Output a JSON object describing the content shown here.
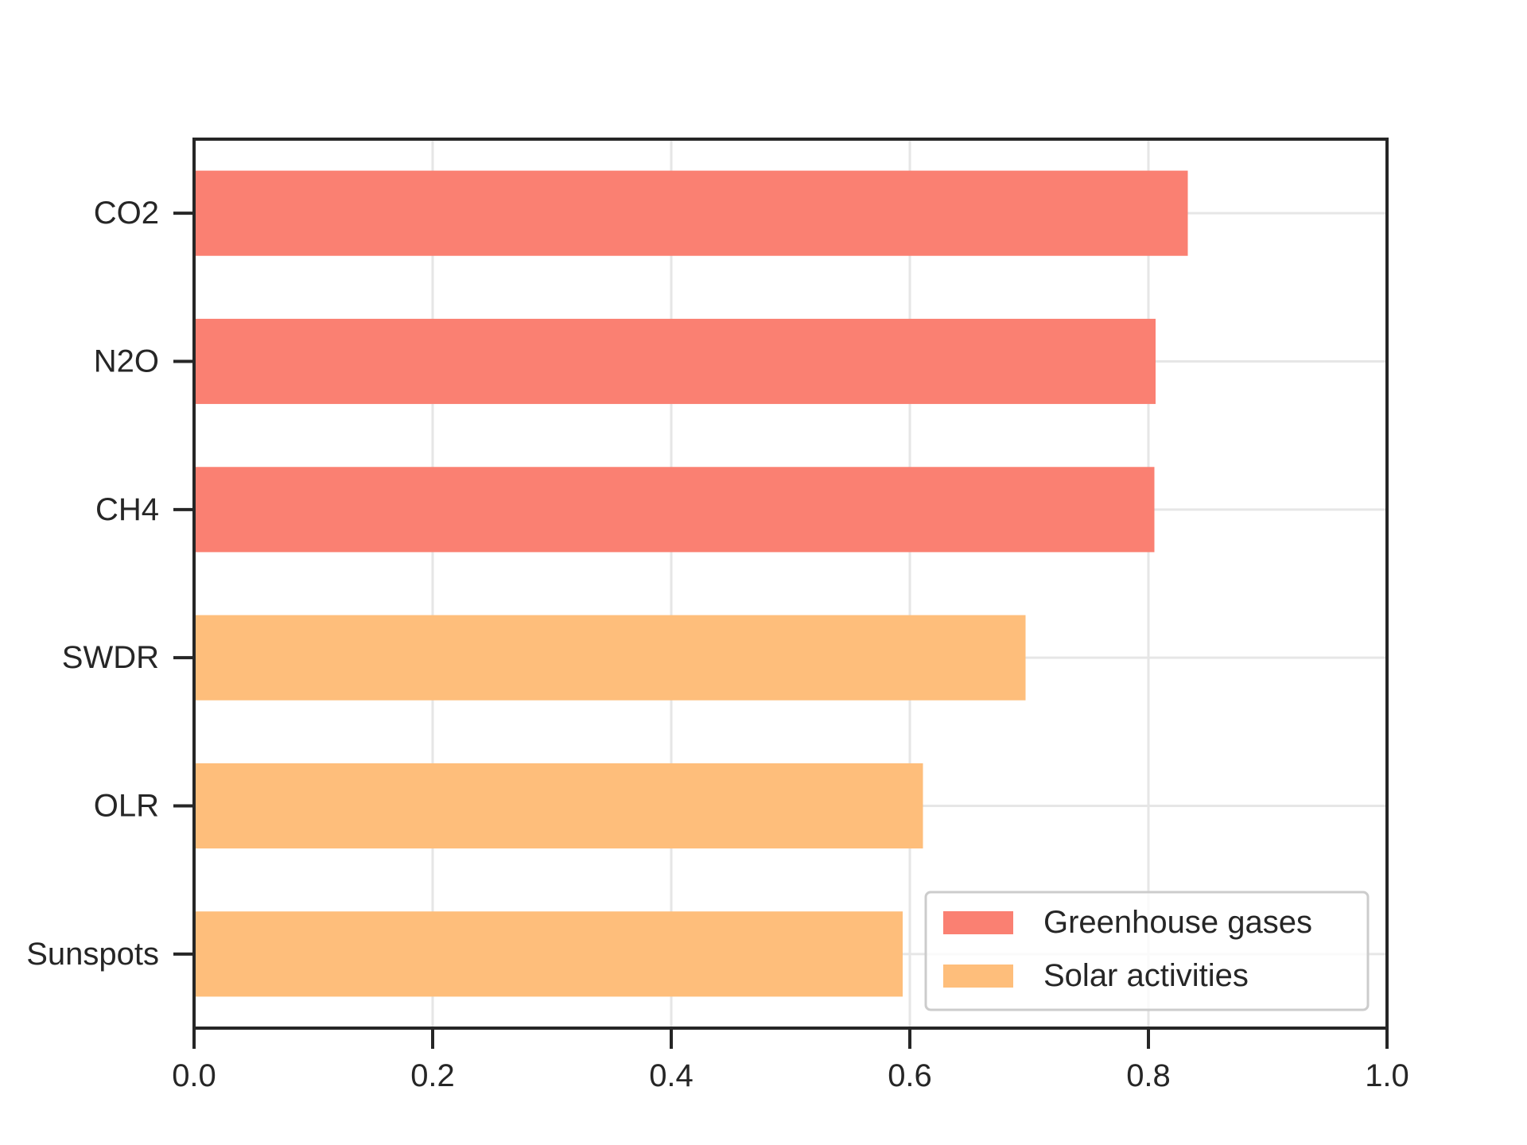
{
  "chart_data": {
    "type": "bar",
    "orientation": "horizontal",
    "categories": [
      "CO2",
      "N2O",
      "CH4",
      "SWDR",
      "OLR",
      "Sunspots"
    ],
    "values": [
      0.833,
      0.806,
      0.805,
      0.697,
      0.611,
      0.594
    ],
    "groups": [
      "Greenhouse gases",
      "Greenhouse gases",
      "Greenhouse gases",
      "Solar activities",
      "Solar activities",
      "Solar activities"
    ],
    "series": [
      {
        "name": "Greenhouse gases",
        "color": "#fa8072"
      },
      {
        "name": "Solar activities",
        "color": "#febe7b"
      }
    ],
    "xlim": [
      0,
      1.0
    ],
    "xticks": [
      "0.0",
      "0.2",
      "0.4",
      "0.6",
      "0.8",
      "1.0"
    ],
    "xlabel": "",
    "ylabel": "",
    "title": "",
    "grid": true,
    "legend_position": "lower-right"
  }
}
